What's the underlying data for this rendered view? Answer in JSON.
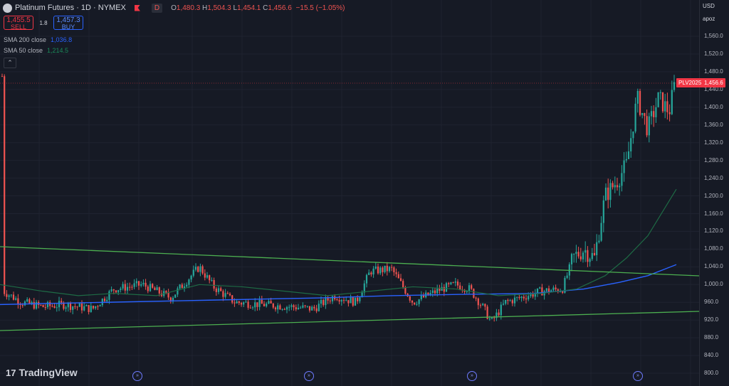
{
  "header": {
    "title": "Platinum Futures · 1D · NYMEX",
    "badge": "D",
    "ohlc": {
      "o_label": "O",
      "o": "1,480.3",
      "h_label": "H",
      "h": "1,504.3",
      "l_label": "L",
      "l": "1,454.1",
      "c_label": "C",
      "c": "1,456.6",
      "change": "−15.5 (−1.05%)"
    }
  },
  "trade": {
    "sell_price": "1,455.5",
    "sell_label": "SELL",
    "spread": "1.8",
    "buy_price": "1,457.3",
    "buy_label": "BUY"
  },
  "indicators": [
    {
      "label": "SMA 200 close",
      "value": "1,036.8"
    },
    {
      "label": "SMA 50 close",
      "value": "1,214.5"
    }
  ],
  "axis": {
    "currency": "USD",
    "scale_mode": "apoz",
    "ticks": [
      "1,560.0",
      "1,520.0",
      "1,480.0",
      "1,440.0",
      "1,400.0",
      "1,360.0",
      "1,320.0",
      "1,280.0",
      "1,240.0",
      "1,200.0",
      "1,160.0",
      "1,120.0",
      "1,080.0",
      "1,040.0",
      "1,000.0",
      "960.0",
      "920.0",
      "880.0",
      "840.0",
      "800.0"
    ]
  },
  "price_tag": {
    "symbol": "PLV2025",
    "value": "1,456.6"
  },
  "branding": {
    "logo": "TradingView"
  },
  "colors": {
    "up": "#26a69a",
    "down": "#ef5350",
    "sma200": "#2962ff",
    "sma50": "#1b5e3a",
    "trendline": "#4caf50",
    "bg": "#161a25"
  },
  "chart_data": {
    "type": "candlestick",
    "ylim": [
      800,
      1560
    ],
    "series": [
      {
        "name": "SMA 200 close",
        "last": 1036.8
      },
      {
        "name": "SMA 50 close",
        "last": 1214.5
      }
    ],
    "ohlc_last": {
      "open": 1480.3,
      "high": 1504.3,
      "low": 1454.1,
      "close": 1456.6
    }
  }
}
